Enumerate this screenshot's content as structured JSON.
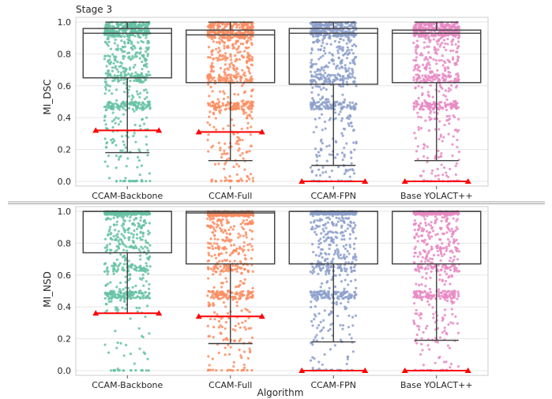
{
  "chart_data": [
    {
      "type": "box",
      "title": "Stage 3",
      "xlabel": "",
      "ylabel": "MI_DSC",
      "ylim": [
        -0.03,
        1.03
      ],
      "yticks": [
        "0.0",
        "0.2",
        "0.4",
        "0.6",
        "0.8",
        "1.0"
      ],
      "ytick_values": [
        0,
        0.2,
        0.4,
        0.6,
        0.8,
        1.0
      ],
      "grid": true,
      "categories": [
        "CCAM-Backbone",
        "CCAM-Full",
        "CCAM-FPN",
        "Base YOLACT++"
      ],
      "colors": [
        "#66c2a5",
        "#fc8d62",
        "#8da0cb",
        "#e78ac3"
      ],
      "boxes": [
        {
          "whisker_low": 0.18,
          "q1": 0.65,
          "median": 0.93,
          "q3": 0.96,
          "whisker_high": 1.0
        },
        {
          "whisker_low": 0.13,
          "q1": 0.62,
          "median": 0.92,
          "q3": 0.95,
          "whisker_high": 1.0
        },
        {
          "whisker_low": 0.1,
          "q1": 0.61,
          "median": 0.93,
          "q3": 0.96,
          "whisker_high": 1.0
        },
        {
          "whisker_low": 0.13,
          "q1": 0.62,
          "median": 0.93,
          "q3": 0.95,
          "whisker_high": 1.0
        }
      ],
      "reference_line": {
        "color": "#ff0000",
        "values": [
          0.32,
          0.31,
          0.0,
          0.0
        ]
      }
    },
    {
      "type": "box",
      "title": "",
      "xlabel": "Algorithm",
      "ylabel": "MI_NSD",
      "ylim": [
        -0.03,
        1.03
      ],
      "yticks": [
        "0.0",
        "0.2",
        "0.4",
        "0.6",
        "0.8",
        "1.0"
      ],
      "ytick_values": [
        0,
        0.2,
        0.4,
        0.6,
        0.8,
        1.0
      ],
      "grid": true,
      "categories": [
        "CCAM-Backbone",
        "CCAM-Full",
        "CCAM-FPN",
        "Base YOLACT++"
      ],
      "colors": [
        "#66c2a5",
        "#fc8d62",
        "#8da0cb",
        "#e78ac3"
      ],
      "boxes": [
        {
          "whisker_low": 0.36,
          "q1": 0.74,
          "median": 1.0,
          "q3": 1.0,
          "whisker_high": 1.0
        },
        {
          "whisker_low": 0.17,
          "q1": 0.67,
          "median": 0.99,
          "q3": 1.0,
          "whisker_high": 1.0
        },
        {
          "whisker_low": 0.18,
          "q1": 0.67,
          "median": 1.0,
          "q3": 1.0,
          "whisker_high": 1.0
        },
        {
          "whisker_low": 0.19,
          "q1": 0.67,
          "median": 1.0,
          "q3": 1.0,
          "whisker_high": 1.0
        }
      ],
      "reference_line": {
        "color": "#ff0000",
        "values": [
          0.36,
          0.34,
          0.0,
          0.0
        ]
      }
    }
  ]
}
